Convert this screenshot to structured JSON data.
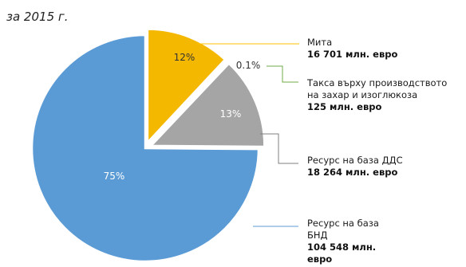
{
  "chart_data": {
    "type": "pie",
    "title": "за 2015 г.",
    "colors": {
      "yellow": "#f5b800",
      "gray": "#a5a5a5",
      "blue": "#5b9bd5",
      "line_yellow": "#ffc000",
      "line_green": "#70ad47",
      "line_gray": "#7f7f7f",
      "line_blue": "#5b9bd5"
    },
    "slices": [
      {
        "pct_label": "12%",
        "value": 16701,
        "color": "yellow",
        "label_lines": [
          "Мита"
        ],
        "value_lines": [
          "16 701 млн. евро"
        ]
      },
      {
        "pct_label": "0.1%",
        "value": 125,
        "color": "yellow",
        "label_lines": [
          "Такса върху производството",
          "на  захар и изоглюкоза"
        ],
        "value_lines": [
          "125 млн. евро"
        ]
      },
      {
        "pct_label": "13%",
        "value": 18264,
        "color": "gray",
        "label_lines": [
          "Ресурс на база ДДС"
        ],
        "value_lines": [
          "18 264 млн. евро"
        ]
      },
      {
        "pct_label": "75%",
        "value": 104548,
        "color": "blue",
        "label_lines": [
          "Ресурс на база",
          "БНД"
        ],
        "value_lines": [
          "104 548 млн.",
          "евро"
        ]
      }
    ]
  }
}
